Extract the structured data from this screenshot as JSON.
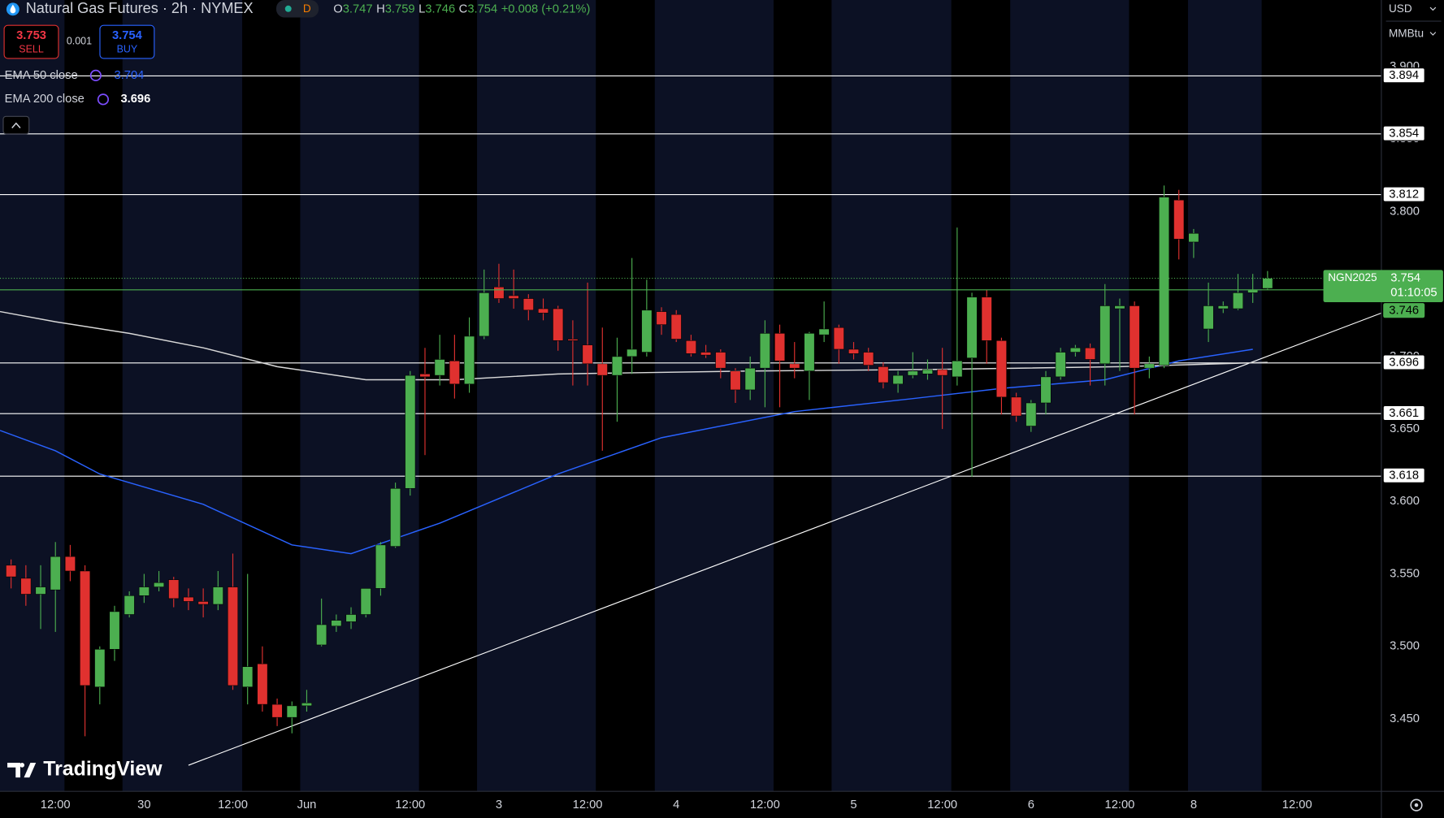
{
  "header": {
    "title": "Natural Gas Futures · 2h · NYMEX",
    "badge": "D",
    "open_label": "O",
    "open": 3.747,
    "high_label": "H",
    "high": 3.759,
    "low_label": "L",
    "low": 3.746,
    "close_label": "C",
    "close": 3.754,
    "change": "+0.008 (+0.21%)"
  },
  "trade": {
    "sell": 3.753,
    "sell_label": "SELL",
    "spread": 0.001,
    "buy": 3.754,
    "buy_label": "BUY"
  },
  "currency": "USD",
  "unit": "MMBtu",
  "logo": "TradingView",
  "chart_data": {
    "type": "candlestick",
    "categories": [
      null,
      null,
      null,
      "12:00",
      null,
      null,
      null,
      null,
      null,
      "30",
      null,
      null,
      null,
      null,
      null,
      "12:00",
      null,
      null,
      null,
      null,
      "Jun",
      null,
      null,
      null,
      null,
      null,
      null,
      "12:00",
      null,
      null,
      null,
      null,
      null,
      "3",
      null,
      null,
      null,
      null,
      null,
      "12:00",
      null,
      null,
      null,
      null,
      null,
      "4",
      null,
      null,
      null,
      null,
      null,
      "12:00",
      null,
      null,
      null,
      null,
      null,
      "5",
      null,
      null,
      null,
      null,
      null,
      "12:00",
      null,
      null,
      null,
      null,
      null,
      "6",
      null,
      null,
      null,
      null,
      null,
      "12:00",
      null,
      null,
      null,
      null,
      "8",
      null,
      null,
      null,
      null,
      null,
      null,
      "12:00"
    ],
    "open": [
      3.556,
      3.547,
      3.536,
      3.539,
      3.562,
      3.552,
      3.472,
      3.498,
      3.522,
      3.535,
      3.541,
      3.546,
      3.534,
      3.531,
      3.529,
      3.541,
      3.472,
      3.488,
      3.46,
      3.451,
      3.459,
      3.501,
      3.514,
      3.517,
      3.522,
      3.54,
      3.569,
      3.609,
      3.688,
      3.687,
      3.697,
      3.681,
      3.714,
      3.748,
      3.742,
      3.74,
      3.733,
      3.733,
      3.712,
      3.708,
      3.695,
      3.687,
      3.7,
      3.703,
      3.731,
      3.729,
      3.711,
      3.703,
      3.703,
      3.69,
      3.677,
      3.692,
      3.716,
      3.695,
      3.69,
      3.715,
      3.72,
      3.705,
      3.703,
      3.693,
      3.681,
      3.687,
      3.688,
      3.691,
      3.686,
      3.699,
      3.741,
      3.711,
      3.672,
      3.652,
      3.668,
      3.686,
      3.703,
      3.706,
      3.695,
      3.733,
      3.735,
      3.692,
      3.694,
      3.808,
      3.779,
      3.719,
      3.733,
      3.733,
      3.744,
      3.747,
      null,
      null
    ],
    "high": [
      3.56,
      3.556,
      3.556,
      3.572,
      3.57,
      3.556,
      3.5,
      3.528,
      3.538,
      3.55,
      3.552,
      3.548,
      3.54,
      3.54,
      3.552,
      3.564,
      3.55,
      3.5,
      3.464,
      3.462,
      3.47,
      3.533,
      3.522,
      3.527,
      3.54,
      3.572,
      3.613,
      3.69,
      3.706,
      3.715,
      3.715,
      3.727,
      3.76,
      3.764,
      3.76,
      3.743,
      3.74,
      3.735,
      3.725,
      3.751,
      3.72,
      3.713,
      3.768,
      3.753,
      3.734,
      3.732,
      3.715,
      3.708,
      3.705,
      3.692,
      3.7,
      3.725,
      3.722,
      3.71,
      3.717,
      3.738,
      3.722,
      3.71,
      3.706,
      3.696,
      3.69,
      3.703,
      3.698,
      3.706,
      3.789,
      3.744,
      3.746,
      3.713,
      3.675,
      3.67,
      3.69,
      3.706,
      3.708,
      3.709,
      3.75,
      3.74,
      3.738,
      3.7,
      3.818,
      3.815,
      3.788,
      3.751,
      3.738,
      3.757,
      3.757,
      3.759,
      null,
      null
    ],
    "low": [
      3.54,
      3.528,
      3.512,
      3.51,
      3.545,
      3.438,
      3.46,
      3.49,
      3.52,
      3.53,
      3.538,
      3.527,
      3.525,
      3.52,
      3.525,
      3.47,
      3.46,
      3.455,
      3.445,
      3.44,
      3.455,
      3.5,
      3.51,
      3.512,
      3.52,
      3.535,
      3.568,
      3.604,
      3.632,
      3.68,
      3.671,
      3.675,
      3.712,
      3.737,
      3.733,
      3.725,
      3.725,
      3.704,
      3.68,
      3.68,
      3.635,
      3.655,
      3.688,
      3.7,
      3.715,
      3.71,
      3.7,
      3.699,
      3.685,
      3.668,
      3.67,
      3.665,
      3.665,
      3.685,
      3.67,
      3.71,
      3.695,
      3.698,
      3.69,
      3.678,
      3.675,
      3.685,
      3.684,
      3.65,
      3.68,
      3.617,
      3.695,
      3.66,
      3.655,
      3.648,
      3.66,
      3.684,
      3.7,
      3.68,
      3.68,
      3.69,
      3.66,
      3.685,
      3.692,
      3.767,
      3.768,
      3.71,
      3.73,
      3.732,
      3.737,
      3.746,
      null,
      null
    ],
    "close": [
      3.548,
      3.536,
      3.541,
      3.562,
      3.552,
      3.473,
      3.498,
      3.524,
      3.535,
      3.541,
      3.544,
      3.533,
      3.531,
      3.529,
      3.541,
      3.473,
      3.486,
      3.46,
      3.451,
      3.459,
      3.461,
      3.515,
      3.518,
      3.522,
      3.54,
      3.57,
      3.609,
      3.687,
      3.686,
      3.698,
      3.681,
      3.714,
      3.744,
      3.74,
      3.74,
      3.732,
      3.73,
      3.711,
      3.711,
      3.695,
      3.687,
      3.7,
      3.705,
      3.732,
      3.722,
      3.712,
      3.702,
      3.701,
      3.692,
      3.677,
      3.692,
      3.716,
      3.697,
      3.692,
      3.716,
      3.719,
      3.705,
      3.702,
      3.694,
      3.682,
      3.687,
      3.69,
      3.691,
      3.687,
      3.697,
      3.741,
      3.711,
      3.672,
      3.659,
      3.668,
      3.686,
      3.703,
      3.706,
      3.698,
      3.735,
      3.735,
      3.692,
      3.695,
      3.81,
      3.781,
      3.785,
      3.735,
      3.735,
      3.744,
      3.746,
      3.754,
      null,
      null
    ],
    "up_color": "#4caf50",
    "down_color": "#e0312f",
    "xlim": [
      -0.75,
      92.7
    ],
    "ylim": [
      3.4,
      3.946
    ],
    "yticks": [
      {
        "value": 3.45,
        "label": "3.450"
      },
      {
        "value": 3.5,
        "label": "3.500"
      },
      {
        "value": 3.55,
        "label": "3.550"
      },
      {
        "value": 3.6,
        "label": "3.600"
      },
      {
        "value": 3.65,
        "label": "3.650"
      },
      {
        "value": 3.7,
        "label": "3.700"
      },
      {
        "value": 3.8,
        "label": "3.800"
      },
      {
        "value": 3.85,
        "label": "3.850"
      },
      {
        "value": 3.9,
        "label": "3.900"
      }
    ],
    "series": [
      {
        "name": "EMA 50 close",
        "color": "#2962ff",
        "legend_value": 3.704,
        "x": [
          -0.75,
          3,
          6,
          13,
          19,
          23,
          29,
          37,
          44,
          53,
          61,
          67,
          74,
          79,
          84
        ],
        "values": [
          3.649,
          3.635,
          3.619,
          3.598,
          3.57,
          3.564,
          3.585,
          3.619,
          3.644,
          3.662,
          3.671,
          3.678,
          3.684,
          3.697,
          3.705
        ]
      },
      {
        "name": "EMA 200 close",
        "color": "#d8d8d8",
        "legend_value": 3.696,
        "x": [
          -0.75,
          3,
          8,
          13,
          18,
          24,
          30,
          37,
          50,
          62,
          75,
          85
        ],
        "values": [
          3.731,
          3.724,
          3.716,
          3.706,
          3.693,
          3.684,
          3.684,
          3.688,
          3.69,
          3.691,
          3.693,
          3.696
        ]
      }
    ],
    "trendline": {
      "color": "#ffffff",
      "x": [
        12,
        92.7
      ],
      "values": [
        3.418,
        3.73
      ]
    },
    "hlines": [
      3.894,
      3.854,
      3.812,
      3.696,
      3.661,
      3.618
    ],
    "hline_color": "#ffffff",
    "last_price": {
      "symbol": "NGN2025",
      "value": 3.754,
      "countdown": "01:10:05",
      "color": "#4caf50"
    },
    "low_line": {
      "value": 3.746,
      "color": "#4caf50"
    }
  }
}
